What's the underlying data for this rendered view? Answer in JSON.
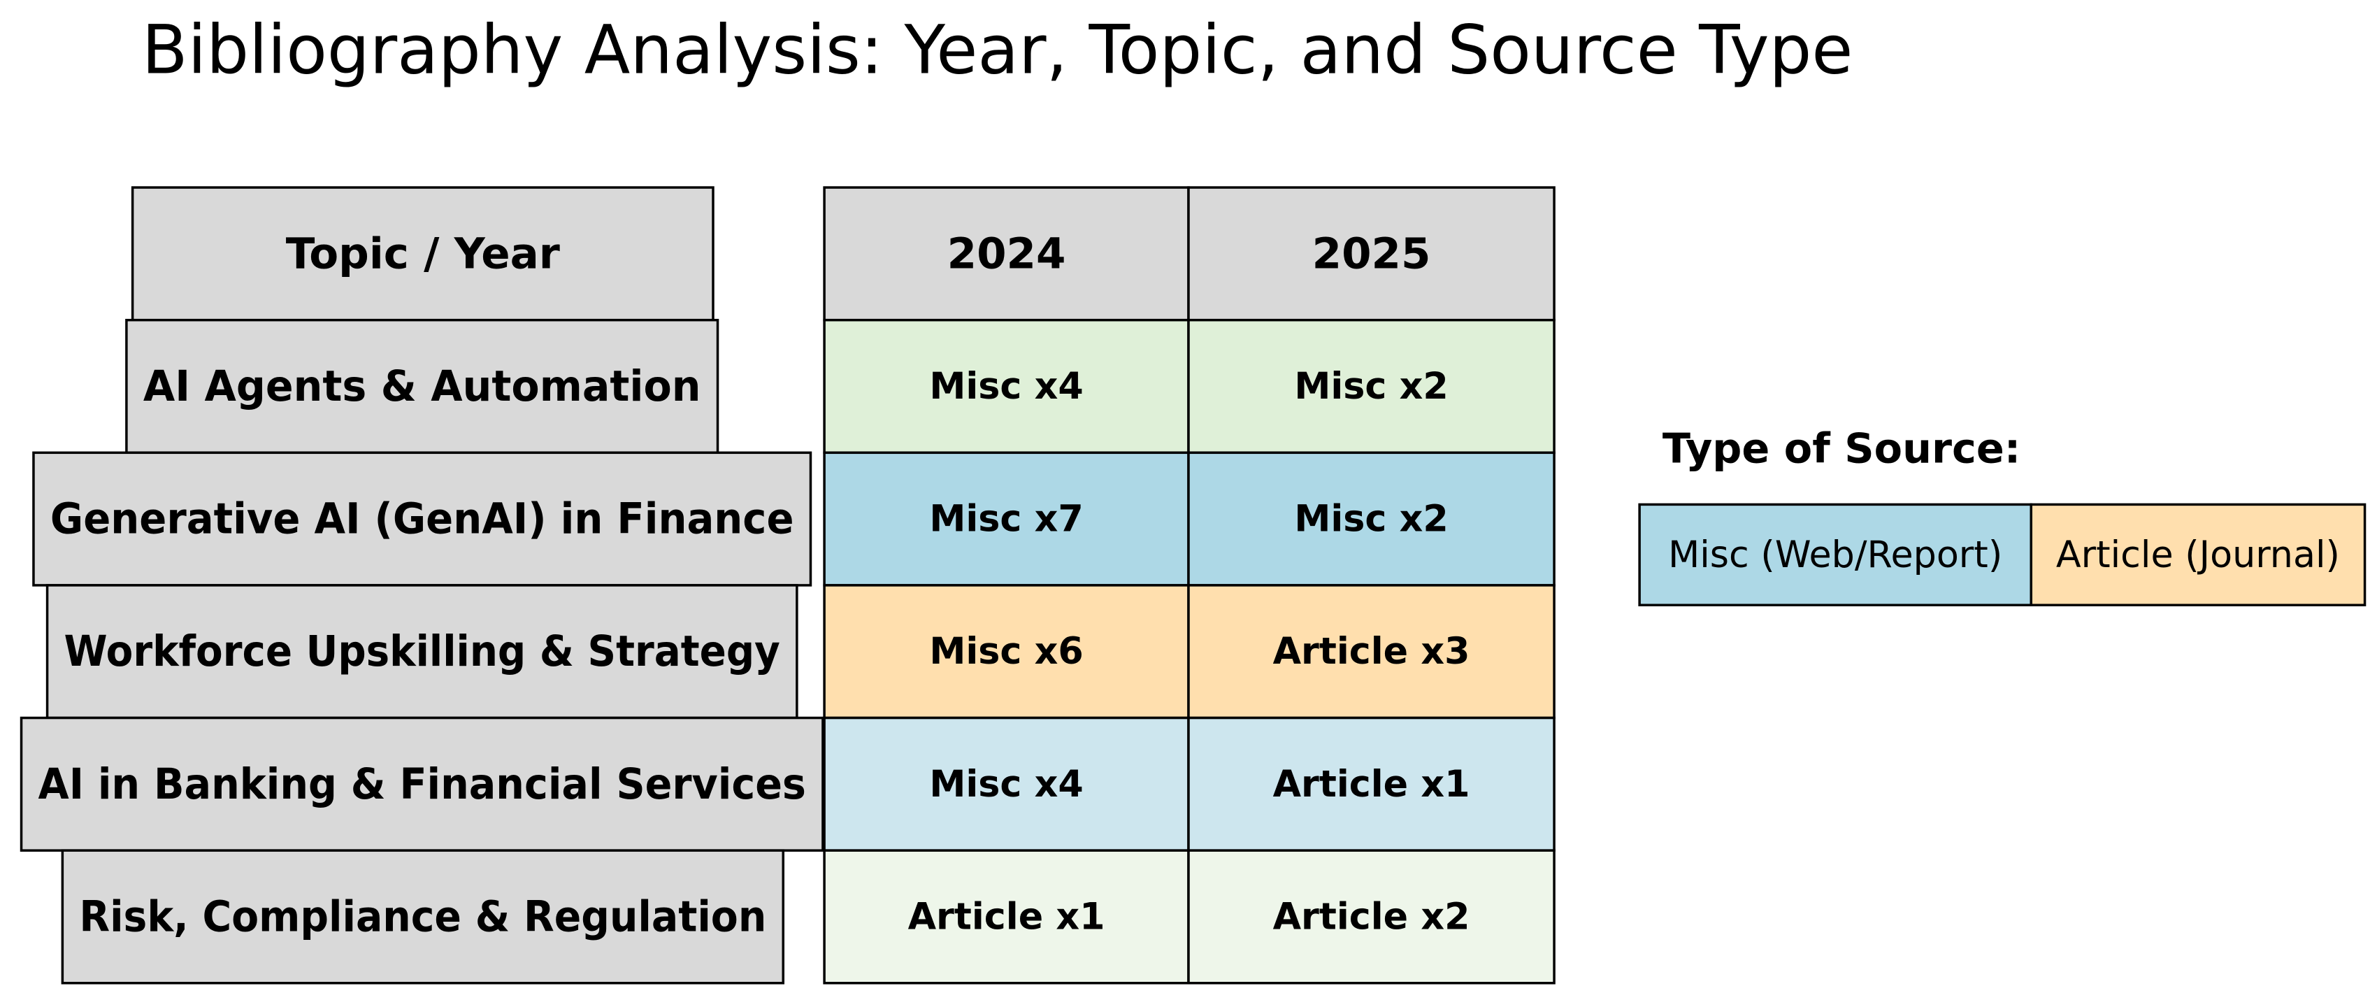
{
  "title": "Bibliography Analysis: Year, Topic, and Source Type",
  "table": {
    "header": [
      "Topic / Year",
      "2024",
      "2025"
    ],
    "rows": [
      [
        "AI Agents & Automation",
        "Misc x4",
        "Misc x2"
      ],
      [
        "Generative AI (GenAI) in Finance",
        "Misc x7",
        "Misc x2"
      ],
      [
        "Workforce Upskilling & Strategy",
        "Misc x6",
        "Article x3"
      ],
      [
        "AI in Banking & Financial Services",
        "Misc x4",
        "Article x1"
      ],
      [
        "Risk, Compliance & Regulation",
        "Article x1",
        "Article x2"
      ]
    ]
  },
  "legend": {
    "title": "Type of Source:",
    "items": [
      "Misc (Web/Report)",
      "Article (Journal)"
    ]
  }
}
